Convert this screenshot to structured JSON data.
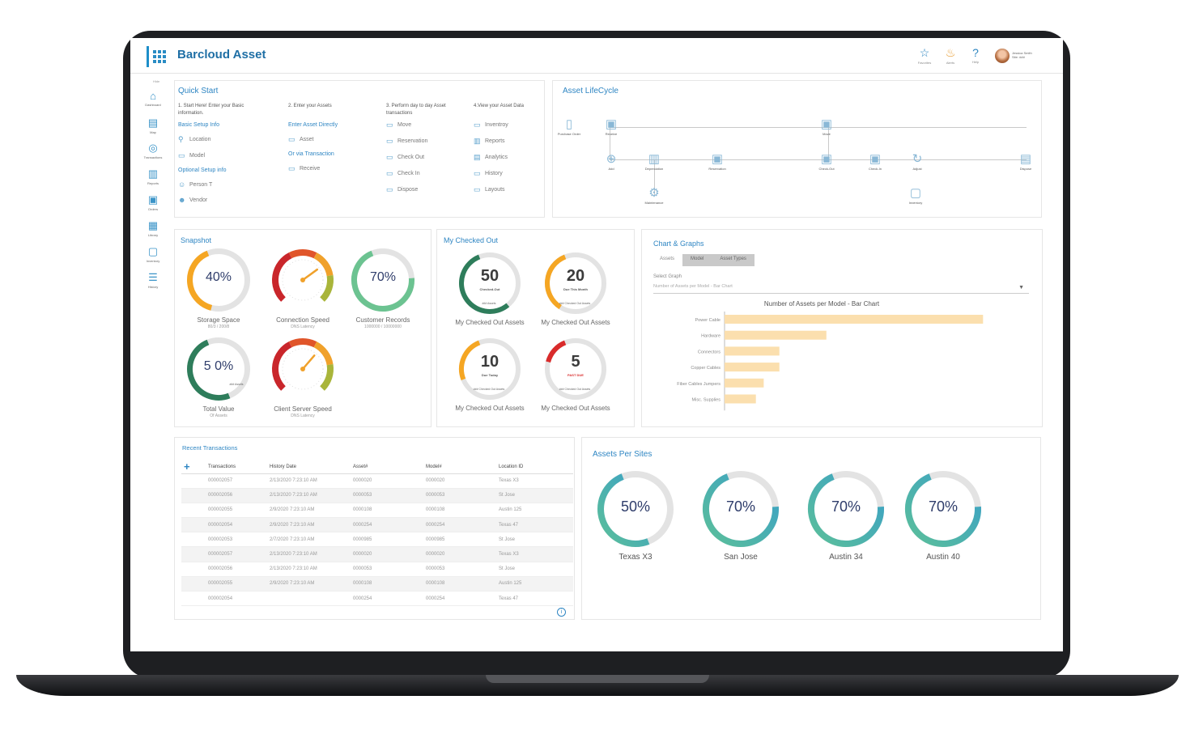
{
  "app": {
    "title": "Barcloud Asset"
  },
  "header": {
    "tools": [
      {
        "icon": "star-icon",
        "label": "Favorites"
      },
      {
        "icon": "bell-icon",
        "label": "Alerts"
      },
      {
        "icon": "help-icon",
        "label": "Help"
      }
    ],
    "user": {
      "name": "Jessica Smith",
      "role": "Site: ###"
    }
  },
  "sidebar": {
    "collapse_label": "Hide",
    "items": [
      {
        "icon": "home-icon",
        "label": "Dashboard"
      },
      {
        "icon": "map-icon",
        "label": "Map"
      },
      {
        "icon": "transactions-icon",
        "label": "Transactions"
      },
      {
        "icon": "reports-icon",
        "label": "Reports"
      },
      {
        "icon": "orders-icon",
        "label": "Orders"
      },
      {
        "icon": "library-icon",
        "label": "Library"
      },
      {
        "icon": "inventory-icon",
        "label": "Inventory"
      },
      {
        "icon": "history-icon",
        "label": "History"
      }
    ]
  },
  "quick_start": {
    "title": "Quick Start",
    "columns": [
      {
        "step": "1. Start Here! Enter your Basic information.",
        "groups": [
          {
            "link": "Basic Setup Info",
            "items": [
              {
                "icon": "location-icon",
                "label": "Location"
              },
              {
                "icon": "model-icon",
                "label": "Model"
              }
            ]
          },
          {
            "link": "Optional Setup info",
            "items": [
              {
                "icon": "person-icon",
                "label": "Person T"
              },
              {
                "icon": "vendor-icon",
                "label": "Vendor"
              }
            ]
          }
        ]
      },
      {
        "step": "2. Enter your Assets",
        "groups": [
          {
            "link": "Enter Asset Directly",
            "items": [
              {
                "icon": "asset-icon",
                "label": "Asset"
              }
            ]
          },
          {
            "link": "Or via Transaction",
            "items": [
              {
                "icon": "receive-icon",
                "label": "Receive"
              }
            ]
          }
        ]
      },
      {
        "step": "3. Perform day to day Asset transactions",
        "groups": [
          {
            "link": "",
            "items": [
              {
                "icon": "move-icon",
                "label": "Move"
              },
              {
                "icon": "reservation-icon",
                "label": "Reservation"
              },
              {
                "icon": "check-out-icon",
                "label": "Check Out"
              },
              {
                "icon": "check-in-icon",
                "label": "Check In"
              },
              {
                "icon": "dispose-icon",
                "label": "Dispose"
              }
            ]
          }
        ]
      },
      {
        "step": "4.View your Asset Data",
        "groups": [
          {
            "link": "",
            "items": [
              {
                "icon": "inventory-icon",
                "label": "Inventroy"
              },
              {
                "icon": "reports-icon",
                "label": "Reports"
              },
              {
                "icon": "analytics-icon",
                "label": "Analytics"
              },
              {
                "icon": "history-icon",
                "label": "History"
              },
              {
                "icon": "layouts-icon",
                "label": "Layouts"
              }
            ]
          }
        ]
      }
    ]
  },
  "lifecycle": {
    "title": "Asset LifeCycle",
    "nodes": [
      {
        "icon": "document-icon",
        "label": "Purchase Order"
      },
      {
        "icon": "receive-icon",
        "label": "Receive"
      },
      {
        "icon": "add-icon",
        "label": "Add"
      },
      {
        "icon": "depreciation-icon",
        "label": "Depreciation"
      },
      {
        "icon": "maintenance-icon",
        "label": "Maintenance"
      },
      {
        "icon": "reservation-icon",
        "label": "Reservation"
      },
      {
        "icon": "move-icon",
        "label": "Move"
      },
      {
        "icon": "check-out-icon",
        "label": "Check-Out"
      },
      {
        "icon": "check-in-icon",
        "label": "Check-In"
      },
      {
        "icon": "adjust-icon",
        "label": "Adjust"
      },
      {
        "icon": "inventory-icon",
        "label": "Inventory"
      },
      {
        "icon": "dispose-icon",
        "label": "Dispose"
      }
    ]
  },
  "snapshot": {
    "title": "Snapshot",
    "gauges": [
      {
        "kind": "ring",
        "value": "40%",
        "fraction": 0.4,
        "color": "#f5a623",
        "label": "Storage Space",
        "sub": "80/3 / 200/8"
      },
      {
        "kind": "speedo",
        "needle": 0.7,
        "label": "Connection Speed",
        "sub": "DNS Latency"
      },
      {
        "kind": "ring",
        "value": "70%",
        "fraction": 0.7,
        "color": "#6cc391",
        "label": "Customer Records",
        "sub": "1000000 / 10000000"
      },
      {
        "kind": "ring",
        "value": "5 0%",
        "fraction": 0.5,
        "color": "#2e7d5b",
        "label": "Total Value",
        "sub": "Of Assets",
        "inner": "### Assets"
      },
      {
        "kind": "speedo",
        "needle": 0.65,
        "label": "Client Server Speed",
        "sub": "DNS Latency"
      }
    ]
  },
  "checked_out": {
    "title": "My Checked Out",
    "gauges": [
      {
        "value": "50",
        "tag": "Checked-Out",
        "fraction": 0.55,
        "color": "#2e7d5b",
        "inner": "### Assets",
        "label": "My Checked Out Assets"
      },
      {
        "value": "20",
        "tag": "Due This Month",
        "fraction": 0.35,
        "color": "#f5a623",
        "inner": "### Checked Out Assets",
        "label": "My Checked Out Assets"
      },
      {
        "value": "10",
        "tag": "Due Today",
        "fraction": 0.25,
        "color": "#f5a623",
        "inner": "### Checked Out Assets",
        "label": "My Checked Out Assets"
      },
      {
        "value": "5",
        "tag": "PAST DUE",
        "fraction": 0.15,
        "color": "#d92b2b",
        "inner": "### Checked Out Assets",
        "label": "My Checked Out Assets"
      }
    ]
  },
  "charts_panel": {
    "title": "Chart & Graphs",
    "tabs": [
      "Assets",
      "Model",
      "Asset Types"
    ],
    "select_label": "Select Graph",
    "select_value": "Number of Assets per Model - Bar Chart"
  },
  "chart_data": {
    "type": "bar",
    "orientation": "horizontal",
    "title": "Number of Assets per Model - Bar Chart",
    "categories": [
      "Power Cable",
      "Hardware",
      "Connectors",
      "Copper Cables",
      "Fiber Cables Jumpers",
      "Misc. Supplies"
    ],
    "values": [
      33000,
      13000,
      7000,
      7000,
      5000,
      4000
    ],
    "xlim": [
      0,
      37000
    ],
    "xticks": [
      5000,
      10000,
      15000,
      20000,
      25000,
      30000,
      35000
    ],
    "bar_color": "#fbdfae"
  },
  "transactions": {
    "title": "Recent Transactions",
    "columns": [
      "Transactions",
      "History Date",
      "Asset#",
      "Model#",
      "Location ID"
    ],
    "rows": [
      [
        "000002057",
        "2/13/2020 7:23:10 AM",
        "0000020",
        "0000020",
        "Texas X3"
      ],
      [
        "000002056",
        "2/13/2020 7:23:10 AM",
        "0000053",
        "0000053",
        "St Jose"
      ],
      [
        "000002055",
        "2/9/2020 7:23:10 AM",
        "0000108",
        "0000108",
        "Austin 125"
      ],
      [
        "000002054",
        "2/9/2020 7:23:10 AM",
        "0000254",
        "0000254",
        "Texas 47"
      ],
      [
        "000002053",
        "2/7/2020 7:23:10 AM",
        "0000985",
        "0000985",
        "St Jose"
      ],
      [
        "000002057",
        "2/13/2020 7:23:10 AM",
        "0000020",
        "0000020",
        "Texas X3"
      ],
      [
        "000002056",
        "2/13/2020 7:23:10 AM",
        "0000053",
        "0000053",
        "St Jose"
      ],
      [
        "000002055",
        "2/9/2020 7:23:10 AM",
        "0000108",
        "0000108",
        "Austin 125"
      ],
      [
        "000002054",
        "",
        "0000254",
        "0000254",
        "Texas 47"
      ]
    ]
  },
  "sites": {
    "title": "Assets Per Sites",
    "items": [
      {
        "value": "50%",
        "fraction": 0.5,
        "label": "Texas X3"
      },
      {
        "value": "70%",
        "fraction": 0.7,
        "label": "San Jose"
      },
      {
        "value": "70%",
        "fraction": 0.7,
        "label": "Austin 34"
      },
      {
        "value": "70%",
        "fraction": 0.7,
        "label": "Austin 40"
      }
    ]
  },
  "colors": {
    "accent": "#2f86c3",
    "ring_track": "#e3e3e3",
    "site_ring_start": "#5bbf9a",
    "site_ring_end": "#3aa0c8",
    "gauge_text": "#2f3d6b"
  }
}
